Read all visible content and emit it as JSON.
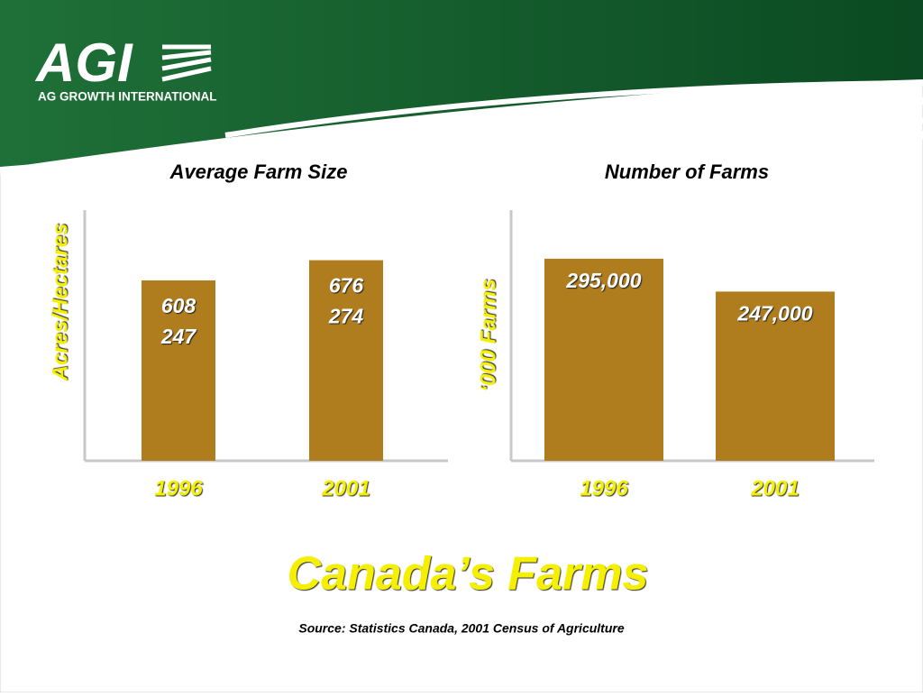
{
  "header": {
    "logo": "AGI",
    "company": "AG GROWTH INTERNATIONAL"
  },
  "chart_data": [
    {
      "type": "bar",
      "title": "Average Farm Size",
      "y_label": "Acres/Hectares",
      "categories": [
        "1996",
        "2001"
      ],
      "values": [
        608,
        676
      ],
      "hectares": [
        247,
        274
      ],
      "color": "#b07d1e",
      "ylim": [
        0,
        845
      ]
    },
    {
      "type": "bar",
      "title": "Number of Farms",
      "y_label": "‘000 Farms",
      "categories": [
        "1996",
        "2001"
      ],
      "values": [
        295000,
        247000
      ],
      "value_labels": [
        "295,000",
        "247,000"
      ],
      "color": "#b07d1e",
      "ylim": [
        0,
        366000
      ]
    }
  ],
  "title": "Canada’s Farms",
  "source": "Source: Statistics Canada, 2001 Census of Agriculture"
}
